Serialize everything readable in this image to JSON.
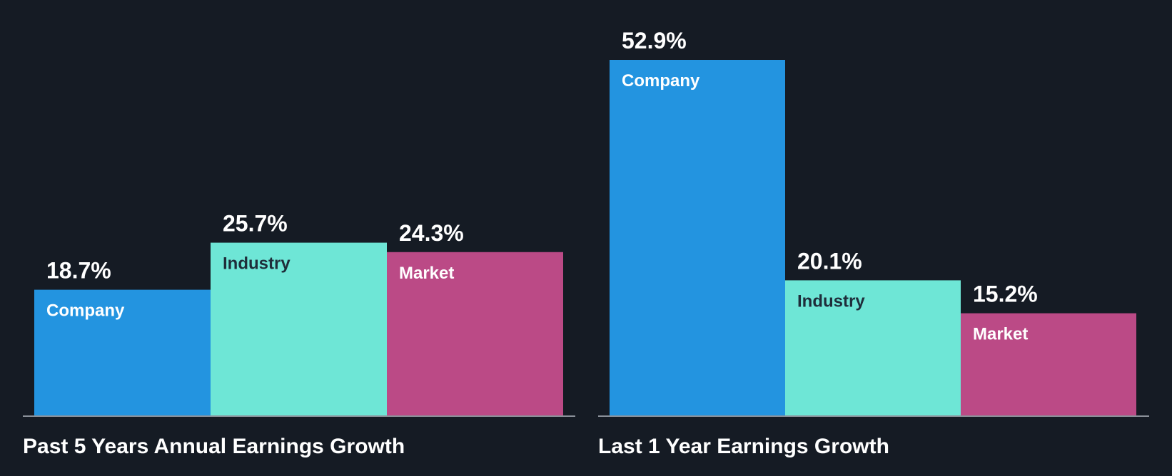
{
  "chart_data": [
    {
      "type": "bar",
      "title": "Past 5 Years Annual Earnings Growth",
      "categories": [
        "Company",
        "Industry",
        "Market"
      ],
      "values": [
        18.7,
        25.7,
        24.3
      ],
      "value_labels": [
        "18.7%",
        "25.7%",
        "24.3%"
      ],
      "colors": [
        "#2394e0",
        "#6ee6d6",
        "#bb4a86"
      ],
      "label_colors": [
        "#ffffff",
        "#1f2d3a",
        "#ffffff"
      ],
      "xlabel": "",
      "ylabel": "",
      "ylim": [
        0,
        55
      ],
      "grid": false,
      "legend": "none"
    },
    {
      "type": "bar",
      "title": "Last 1 Year Earnings Growth",
      "categories": [
        "Company",
        "Industry",
        "Market"
      ],
      "values": [
        52.9,
        20.1,
        15.2
      ],
      "value_labels": [
        "52.9%",
        "20.1%",
        "15.2%"
      ],
      "colors": [
        "#2394e0",
        "#6ee6d6",
        "#bb4a86"
      ],
      "label_colors": [
        "#ffffff",
        "#1f2d3a",
        "#ffffff"
      ],
      "xlabel": "",
      "ylabel": "",
      "ylim": [
        0,
        55
      ],
      "grid": false,
      "legend": "none"
    }
  ]
}
